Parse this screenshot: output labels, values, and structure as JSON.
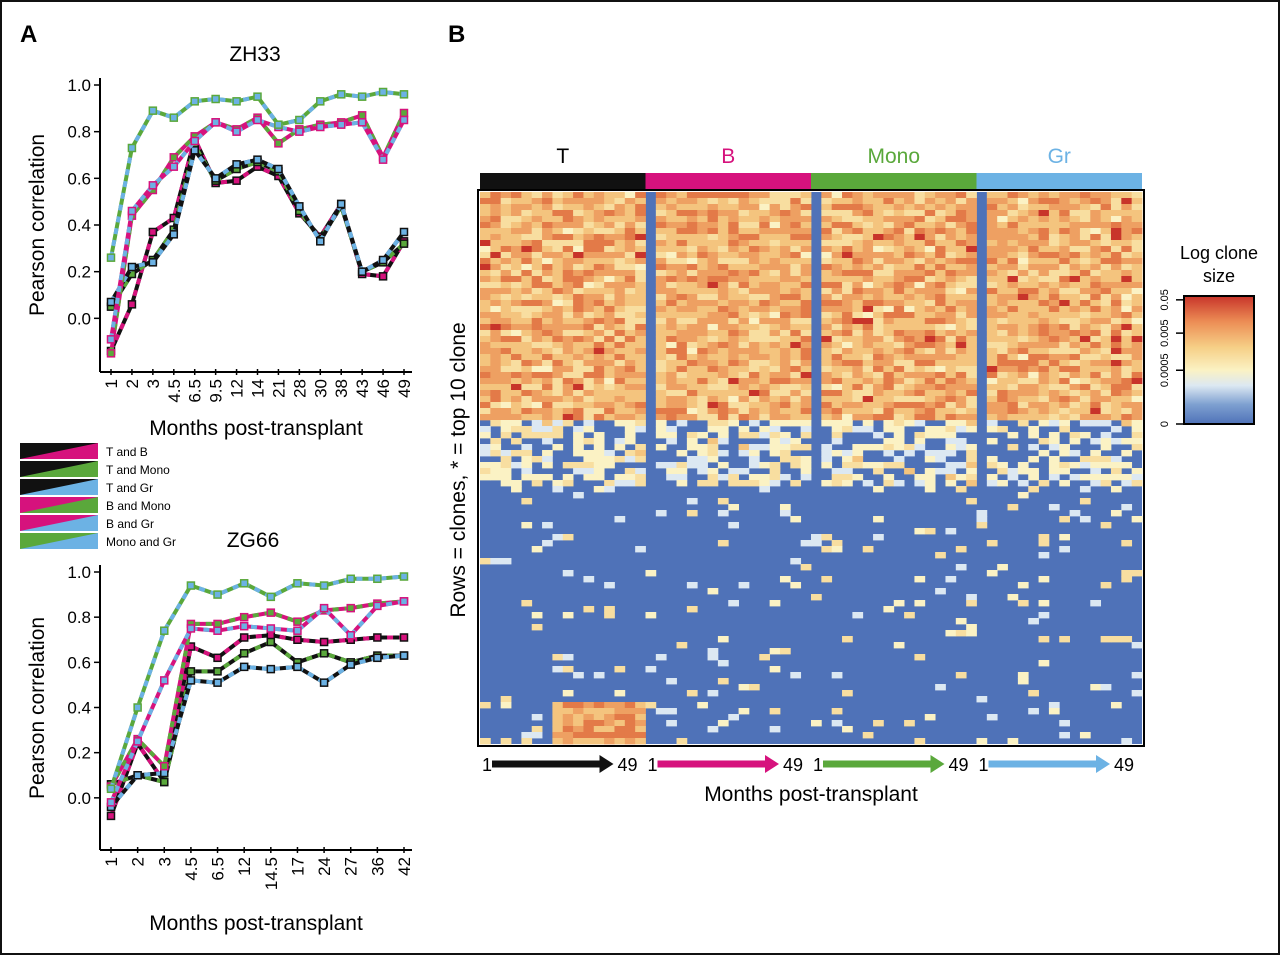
{
  "panel_a": {
    "label": "A"
  },
  "panel_b": {
    "label": "B"
  },
  "legend": {
    "entries": [
      {
        "label": "T and B",
        "colors": [
          "#111111",
          "#d6127d"
        ]
      },
      {
        "label": "T and Mono",
        "colors": [
          "#111111",
          "#5aa83b"
        ]
      },
      {
        "label": "T and Gr",
        "colors": [
          "#111111",
          "#6cb2e4"
        ]
      },
      {
        "label": "B and Mono",
        "colors": [
          "#d6127d",
          "#5aa83b"
        ]
      },
      {
        "label": "B and Gr",
        "colors": [
          "#d6127d",
          "#6cb2e4"
        ]
      },
      {
        "label": "Mono and Gr",
        "colors": [
          "#5aa83b",
          "#6cb2e4"
        ]
      }
    ]
  },
  "chart_data": [
    {
      "type": "line",
      "title": "ZH33",
      "xlabel": "Months post-transplant",
      "ylabel": "Pearson correlation",
      "ylim": [
        -0.2,
        1.0
      ],
      "yticks": [
        "0.0",
        "0.2",
        "0.4",
        "0.6",
        "0.8",
        "1.0"
      ],
      "categories": [
        "1",
        "2",
        "3",
        "4.5",
        "6.5",
        "9.5",
        "12",
        "14",
        "21",
        "28",
        "30",
        "38",
        "43",
        "46",
        "49"
      ],
      "series": [
        {
          "name": "T and B",
          "values": [
            -0.14,
            0.06,
            0.37,
            0.43,
            0.77,
            0.58,
            0.59,
            0.65,
            0.61,
            0.45,
            0.35,
            0.49,
            0.19,
            0.18,
            0.33
          ]
        },
        {
          "name": "T and Mono",
          "values": [
            0.05,
            0.19,
            0.25,
            0.38,
            0.74,
            0.59,
            0.64,
            0.67,
            0.63,
            0.46,
            0.34,
            0.48,
            0.2,
            0.24,
            0.32
          ]
        },
        {
          "name": "T and Gr",
          "values": [
            0.07,
            0.22,
            0.24,
            0.36,
            0.72,
            0.6,
            0.66,
            0.68,
            0.64,
            0.48,
            0.33,
            0.49,
            0.2,
            0.25,
            0.37
          ]
        },
        {
          "name": "B and Mono",
          "values": [
            -0.15,
            0.44,
            0.55,
            0.69,
            0.78,
            0.84,
            0.81,
            0.86,
            0.75,
            0.81,
            0.83,
            0.84,
            0.87,
            0.69,
            0.88
          ]
        },
        {
          "name": "B and Gr",
          "values": [
            -0.09,
            0.46,
            0.57,
            0.65,
            0.76,
            0.84,
            0.8,
            0.85,
            0.82,
            0.8,
            0.82,
            0.83,
            0.84,
            0.68,
            0.85
          ]
        },
        {
          "name": "Mono and Gr",
          "values": [
            0.26,
            0.73,
            0.89,
            0.86,
            0.93,
            0.94,
            0.93,
            0.95,
            0.83,
            0.85,
            0.93,
            0.96,
            0.95,
            0.97,
            0.96
          ]
        }
      ]
    },
    {
      "type": "line",
      "title": "ZG66",
      "xlabel": "Months post-transplant",
      "ylabel": "Pearson correlation",
      "ylim": [
        -0.2,
        1.0
      ],
      "yticks": [
        "0.0",
        "0.2",
        "0.4",
        "0.6",
        "0.8",
        "1.0"
      ],
      "categories": [
        "1",
        "2",
        "3",
        "4.5",
        "6.5",
        "12",
        "14.5",
        "17",
        "24",
        "27",
        "36",
        "42"
      ],
      "series": [
        {
          "name": "T and B",
          "values": [
            -0.08,
            0.24,
            0.07,
            0.67,
            0.62,
            0.71,
            0.72,
            0.7,
            0.69,
            0.7,
            0.71,
            0.71
          ]
        },
        {
          "name": "T and Mono",
          "values": [
            0.06,
            0.1,
            0.07,
            0.56,
            0.56,
            0.64,
            0.69,
            0.6,
            0.64,
            0.6,
            0.63,
            0.63
          ]
        },
        {
          "name": "T and Gr",
          "values": [
            -0.04,
            0.1,
            0.11,
            0.52,
            0.51,
            0.58,
            0.57,
            0.58,
            0.51,
            0.59,
            0.62,
            0.63
          ]
        },
        {
          "name": "B and Mono",
          "values": [
            0.05,
            0.26,
            0.14,
            0.77,
            0.77,
            0.8,
            0.82,
            0.78,
            0.83,
            0.84,
            0.86,
            0.87
          ]
        },
        {
          "name": "B and Gr",
          "values": [
            -0.02,
            0.25,
            0.52,
            0.75,
            0.74,
            0.76,
            0.75,
            0.74,
            0.84,
            0.72,
            0.85,
            0.87
          ]
        },
        {
          "name": "Mono and Gr",
          "values": [
            0.04,
            0.4,
            0.74,
            0.94,
            0.9,
            0.95,
            0.89,
            0.95,
            0.94,
            0.97,
            0.97,
            0.98
          ]
        }
      ]
    },
    {
      "type": "heatmap",
      "ylabel": "Rows = clones,  * = top 10 clone",
      "xlabel": "Months post-transplant",
      "groups": [
        {
          "name": "T",
          "color": "#111111",
          "start": "1",
          "end": "49"
        },
        {
          "name": "B",
          "color": "#d6127d",
          "start": "1",
          "end": "49"
        },
        {
          "name": "Mono",
          "color": "#5aa83b",
          "start": "1",
          "end": "49"
        },
        {
          "name": "Gr",
          "color": "#6cb2e4",
          "start": "1",
          "end": "49"
        }
      ],
      "colorbar": {
        "title_line1": "Log clone",
        "title_line2": "size",
        "ticks": [
          "0",
          "0.0005",
          "0.005",
          "0.05"
        ],
        "low_color": "#4f72b8",
        "high_color": "#c8342a"
      }
    }
  ]
}
